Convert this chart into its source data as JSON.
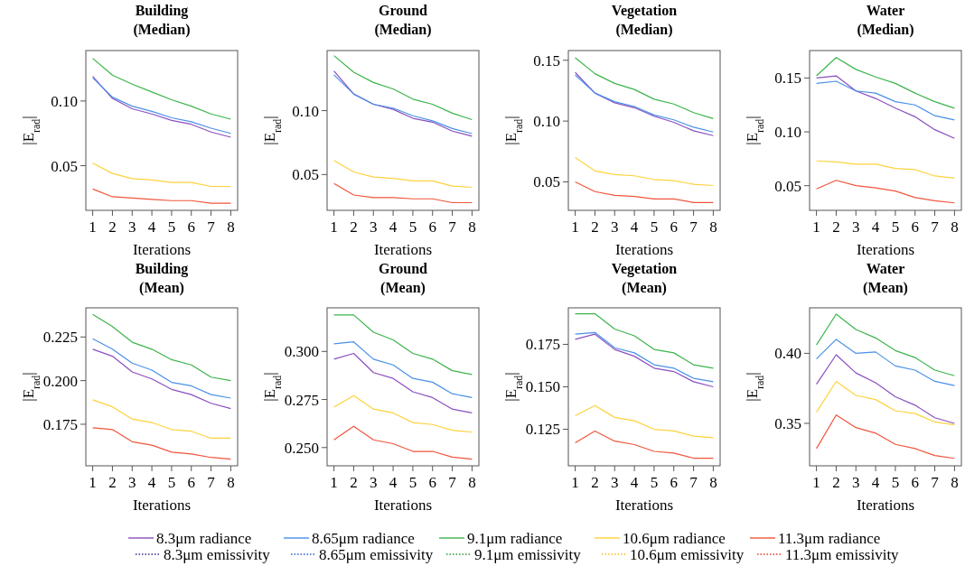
{
  "chart_data": [
    {
      "type": "line",
      "title": "Building\n(Median)",
      "xlabel": "Iterations",
      "ylabel": "|E$_{rad}$|",
      "categories": [
        "1",
        "2",
        "3",
        "4",
        "5",
        "6",
        "7",
        "8"
      ],
      "ylim": [
        0.0155,
        0.139
      ],
      "yticks": [
        0.05,
        {
          "value": 0.1,
          "label": "0.10"
        }
      ],
      "series": [
        {
          "color": "#8a4fbf",
          "values": [
            0.119,
            0.102,
            0.094,
            0.09,
            0.085,
            0.082,
            0.076,
            0.072
          ]
        },
        {
          "color": "#4a90e8",
          "values": [
            0.118,
            0.103,
            0.096,
            0.092,
            0.087,
            0.084,
            0.079,
            0.075
          ]
        },
        {
          "color": "#3cb44b",
          "values": [
            0.133,
            0.12,
            0.113,
            0.107,
            0.101,
            0.096,
            0.09,
            0.086
          ]
        },
        {
          "color": "#fdd23c",
          "values": [
            0.052,
            0.044,
            0.04,
            0.039,
            0.037,
            0.037,
            0.034,
            0.034
          ]
        },
        {
          "color": "#f0553c",
          "values": [
            0.032,
            0.026,
            0.025,
            0.024,
            0.023,
            0.023,
            0.021,
            0.021
          ]
        }
      ]
    },
    {
      "type": "line",
      "title": "Ground\n(Median)",
      "xlabel": "Iterations",
      "ylabel": "|E$_{rad}$|",
      "categories": [
        "1",
        "2",
        "3",
        "4",
        "5",
        "6",
        "7",
        "8"
      ],
      "ylim": [
        0.022,
        0.147
      ],
      "yticks": [
        0.05,
        {
          "value": 0.1,
          "label": "0.10"
        }
      ],
      "series": [
        {
          "color": "#8a4fbf",
          "values": [
            0.131,
            0.113,
            0.105,
            0.101,
            0.094,
            0.091,
            0.084,
            0.08
          ]
        },
        {
          "color": "#4a90e8",
          "values": [
            0.128,
            0.113,
            0.105,
            0.102,
            0.096,
            0.092,
            0.086,
            0.082
          ]
        },
        {
          "color": "#3cb44b",
          "values": [
            0.143,
            0.13,
            0.122,
            0.117,
            0.109,
            0.105,
            0.098,
            0.093
          ]
        },
        {
          "color": "#fdd23c",
          "values": [
            0.061,
            0.052,
            0.048,
            0.047,
            0.045,
            0.045,
            0.041,
            0.04
          ]
        },
        {
          "color": "#f0553c",
          "values": [
            0.043,
            0.034,
            0.032,
            0.032,
            0.031,
            0.031,
            0.028,
            0.028
          ]
        }
      ]
    },
    {
      "type": "line",
      "title": "Vegetation\n(Median)",
      "xlabel": "Iterations",
      "ylabel": "|E$_{rad}$|",
      "categories": [
        "1",
        "2",
        "3",
        "4",
        "5",
        "6",
        "7",
        "8"
      ],
      "ylim": [
        0.0266,
        0.158
      ],
      "yticks": [
        0.05,
        {
          "value": 0.1,
          "label": "0.10"
        },
        0.15
      ],
      "series": [
        {
          "color": "#8a4fbf",
          "values": [
            0.14,
            0.123,
            0.115,
            0.111,
            0.104,
            0.099,
            0.092,
            0.088
          ]
        },
        {
          "color": "#4a90e8",
          "values": [
            0.138,
            0.123,
            0.116,
            0.112,
            0.105,
            0.101,
            0.095,
            0.091
          ]
        },
        {
          "color": "#3cb44b",
          "values": [
            0.152,
            0.139,
            0.131,
            0.126,
            0.118,
            0.114,
            0.107,
            0.102
          ]
        },
        {
          "color": "#fdd23c",
          "values": [
            0.07,
            0.059,
            0.056,
            0.055,
            0.052,
            0.051,
            0.048,
            0.047
          ]
        },
        {
          "color": "#f0553c",
          "values": [
            0.05,
            0.042,
            0.039,
            0.038,
            0.036,
            0.036,
            0.033,
            0.033
          ]
        }
      ]
    },
    {
      "type": "line",
      "title": "Water\n(Median)",
      "xlabel": "Iterations",
      "ylabel": "|E$_{rad}$|",
      "categories": [
        "1",
        "2",
        "3",
        "4",
        "5",
        "6",
        "7",
        "8"
      ],
      "ylim": [
        0.0271,
        0.1755
      ],
      "yticks": [
        0.05,
        {
          "value": 0.1,
          "label": "0.10"
        },
        0.15
      ],
      "series": [
        {
          "color": "#8a4fbf",
          "values": [
            0.15,
            0.152,
            0.138,
            0.131,
            0.122,
            0.114,
            0.102,
            0.094
          ]
        },
        {
          "color": "#4a90e8",
          "values": [
            0.145,
            0.147,
            0.138,
            0.136,
            0.128,
            0.125,
            0.115,
            0.111
          ]
        },
        {
          "color": "#3cb44b",
          "values": [
            0.152,
            0.169,
            0.158,
            0.151,
            0.145,
            0.136,
            0.128,
            0.122
          ]
        },
        {
          "color": "#fdd23c",
          "values": [
            0.073,
            0.072,
            0.07,
            0.07,
            0.066,
            0.065,
            0.059,
            0.057
          ]
        },
        {
          "color": "#f0553c",
          "values": [
            0.047,
            0.055,
            0.05,
            0.048,
            0.045,
            0.039,
            0.036,
            0.034
          ]
        }
      ]
    },
    {
      "type": "line",
      "title": "Building\n(Mean)",
      "xlabel": "Iterations",
      "ylabel": "|E$_{rad}$|",
      "categories": [
        "1",
        "2",
        "3",
        "4",
        "5",
        "6",
        "7",
        "8"
      ],
      "ylim": [
        0.1512,
        0.2417
      ],
      "yticks": [
        0.175,
        {
          "value": 0.2,
          "label": "0.200"
        },
        0.225
      ],
      "series": [
        {
          "color": "#8a4fbf",
          "values": [
            0.218,
            0.214,
            0.205,
            0.201,
            0.195,
            0.192,
            0.187,
            0.184
          ]
        },
        {
          "color": "#4a90e8",
          "values": [
            0.224,
            0.218,
            0.21,
            0.206,
            0.199,
            0.197,
            0.192,
            0.19
          ]
        },
        {
          "color": "#3cb44b",
          "values": [
            0.238,
            0.231,
            0.222,
            0.218,
            0.212,
            0.209,
            0.202,
            0.2
          ]
        },
        {
          "color": "#fdd23c",
          "values": [
            0.189,
            0.185,
            0.178,
            0.176,
            0.172,
            0.171,
            0.167,
            0.167
          ]
        },
        {
          "color": "#f0553c",
          "values": [
            0.173,
            0.172,
            0.165,
            0.163,
            0.159,
            0.158,
            0.156,
            0.155
          ]
        }
      ]
    },
    {
      "type": "line",
      "title": "Ground\n(Mean)",
      "xlabel": "Iterations",
      "ylabel": "|E$_{rad}$|",
      "categories": [
        "1",
        "2",
        "3",
        "4",
        "5",
        "6",
        "7",
        "8"
      ],
      "ylim": [
        0.2405,
        0.3227
      ],
      "yticks": [
        {
          "value": 0.25,
          "label": "0.250"
        },
        0.275,
        {
          "value": 0.3,
          "label": "0.300"
        }
      ],
      "series": [
        {
          "color": "#8a4fbf",
          "values": [
            0.296,
            0.299,
            0.289,
            0.286,
            0.279,
            0.276,
            0.27,
            0.268
          ]
        },
        {
          "color": "#4a90e8",
          "values": [
            0.304,
            0.305,
            0.296,
            0.293,
            0.286,
            0.284,
            0.278,
            0.276
          ]
        },
        {
          "color": "#3cb44b",
          "values": [
            0.319,
            0.319,
            0.31,
            0.306,
            0.299,
            0.296,
            0.29,
            0.288
          ]
        },
        {
          "color": "#fdd23c",
          "values": [
            0.271,
            0.277,
            0.27,
            0.268,
            0.263,
            0.262,
            0.259,
            0.258
          ]
        },
        {
          "color": "#f0553c",
          "values": [
            0.254,
            0.261,
            0.254,
            0.252,
            0.248,
            0.248,
            0.245,
            0.244
          ]
        }
      ]
    },
    {
      "type": "line",
      "title": "Vegetation\n(Mean)",
      "xlabel": "Iterations",
      "ylabel": "|E$_{rad}$|",
      "categories": [
        "1",
        "2",
        "3",
        "4",
        "5",
        "6",
        "7",
        "8"
      ],
      "ylim": [
        0.1035,
        0.1965
      ],
      "yticks": [
        0.125,
        {
          "value": 0.15,
          "label": "0.150"
        },
        0.175
      ],
      "series": [
        {
          "color": "#8a4fbf",
          "values": [
            0.178,
            0.181,
            0.172,
            0.168,
            0.161,
            0.159,
            0.153,
            0.15
          ]
        },
        {
          "color": "#4a90e8",
          "values": [
            0.181,
            0.182,
            0.173,
            0.17,
            0.163,
            0.161,
            0.155,
            0.153
          ]
        },
        {
          "color": "#3cb44b",
          "values": [
            0.193,
            0.193,
            0.184,
            0.18,
            0.172,
            0.17,
            0.163,
            0.161
          ]
        },
        {
          "color": "#fdd23c",
          "values": [
            0.133,
            0.139,
            0.132,
            0.13,
            0.125,
            0.124,
            0.121,
            0.12
          ]
        },
        {
          "color": "#f0553c",
          "values": [
            0.117,
            0.124,
            0.118,
            0.116,
            0.112,
            0.111,
            0.108,
            0.108
          ]
        }
      ]
    },
    {
      "type": "line",
      "title": "Water\n(Mean)",
      "xlabel": "Iterations",
      "ylabel": "|E$_{rad}$|",
      "categories": [
        "1",
        "2",
        "3",
        "4",
        "5",
        "6",
        "7",
        "8"
      ],
      "ylim": [
        0.3197,
        0.4325
      ],
      "yticks": [
        0.35,
        {
          "value": 0.4,
          "label": "0.40"
        }
      ],
      "legend": "bottom",
      "series": [
        {
          "name": "8.3μm radiance",
          "color": "#8a4fbf",
          "values": [
            0.378,
            0.399,
            0.386,
            0.379,
            0.369,
            0.363,
            0.354,
            0.35
          ]
        },
        {
          "name": "8.65μm radiance",
          "color": "#4a90e8",
          "values": [
            0.396,
            0.41,
            0.4,
            0.401,
            0.391,
            0.388,
            0.38,
            0.377
          ]
        },
        {
          "name": "9.1μm radiance",
          "color": "#3cb44b",
          "values": [
            0.406,
            0.428,
            0.417,
            0.411,
            0.402,
            0.397,
            0.388,
            0.384
          ]
        },
        {
          "name": "10.6μm radiance",
          "color": "#fdd23c",
          "values": [
            0.358,
            0.38,
            0.37,
            0.367,
            0.359,
            0.357,
            0.351,
            0.349
          ]
        },
        {
          "name": "11.3μm radiance",
          "color": "#f0553c",
          "values": [
            0.332,
            0.356,
            0.347,
            0.343,
            0.335,
            0.332,
            0.327,
            0.325
          ]
        },
        {
          "name": "8.3μm emissivity",
          "color": "#3a2a8a",
          "line_style": "dotted",
          "values": [
            null,
            null,
            null,
            null,
            null,
            null,
            null,
            null
          ]
        },
        {
          "name": "8.65μm emissivity",
          "color": "#2a5ad8",
          "line_style": "dotted",
          "values": [
            null,
            null,
            null,
            null,
            null,
            null,
            null,
            null
          ]
        },
        {
          "name": "9.1μm emissivity",
          "color": "#2a9a3a",
          "line_style": "dotted",
          "values": [
            null,
            null,
            null,
            null,
            null,
            null,
            null,
            null
          ]
        },
        {
          "name": "10.6μm emissivity",
          "color": "#f5c020",
          "line_style": "dotted",
          "values": [
            null,
            null,
            null,
            null,
            null,
            null,
            null,
            null
          ]
        },
        {
          "name": "11.3μm emissivity",
          "color": "#e83a2a",
          "line_style": "dotted",
          "values": [
            null,
            null,
            null,
            null,
            null,
            null,
            null,
            null
          ]
        }
      ]
    }
  ]
}
